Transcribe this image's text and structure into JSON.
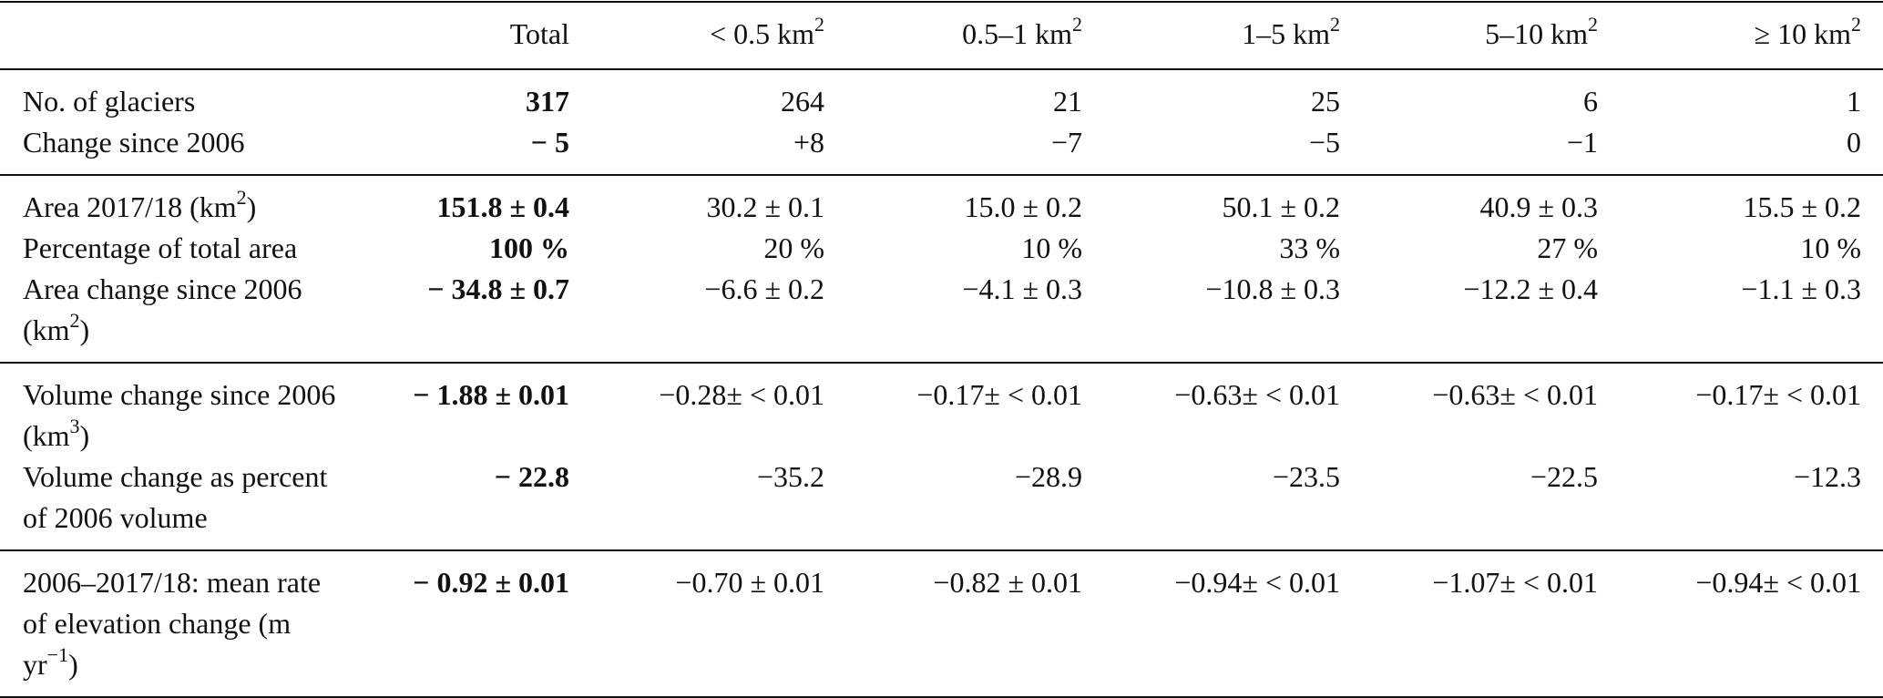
{
  "headers": {
    "total": "Total",
    "bins": [
      {
        "text": "< 0.5 km",
        "sup": "2"
      },
      {
        "text": "0.5–1 km",
        "sup": "2"
      },
      {
        "text": "1–5 km",
        "sup": "2"
      },
      {
        "text": "5–10 km",
        "sup": "2"
      },
      {
        "text": "≥ 10 km",
        "sup": "2"
      }
    ]
  },
  "rows": {
    "num_glaciers": {
      "label": "No. of glaciers",
      "total": "317",
      "values": [
        "264",
        "21",
        "25",
        "6",
        "1"
      ]
    },
    "change_since_2006": {
      "label": "Change since 2006",
      "total": "− 5",
      "values": [
        "+8",
        "−7",
        "−5",
        "−1",
        "0"
      ]
    },
    "area_2017": {
      "label_pre": "Area 2017/18 (km",
      "label_sup": "2",
      "label_post": ")",
      "total": "151.8 ± 0.4",
      "values": [
        "30.2 ± 0.1",
        "15.0 ± 0.2",
        "50.1 ± 0.2",
        "40.9 ± 0.3",
        "15.5 ± 0.2"
      ]
    },
    "pct_total_area": {
      "label": "Percentage of total area",
      "total": "100 %",
      "values": [
        "20 %",
        "10 %",
        "33 %",
        "27 %",
        "10 %"
      ]
    },
    "area_change": {
      "label_pre": "Area change since 2006 (km",
      "label_sup": "2",
      "label_post": ")",
      "total": "− 34.8 ± 0.7",
      "values": [
        "−6.6 ± 0.2",
        "−4.1 ± 0.3",
        "−10.8 ± 0.3",
        "−12.2 ± 0.4",
        "−1.1 ± 0.3"
      ]
    },
    "volume_change": {
      "label_pre": "Volume change since 2006 (km",
      "label_sup": "3",
      "label_post": ")",
      "total": "− 1.88 ± 0.01",
      "values": [
        "−0.28± < 0.01",
        "−0.17± < 0.01",
        "−0.63± < 0.01",
        "−0.63± < 0.01",
        "−0.17± < 0.01"
      ]
    },
    "volume_change_pct": {
      "label": "Volume change as percent of 2006 volume",
      "total": "− 22.8",
      "values": [
        "−35.2",
        "−28.9",
        "−23.5",
        "−22.5",
        "−12.3"
      ]
    },
    "elevation_rate": {
      "label_pre": "2006–2017/18: mean rate of elevation change (m yr",
      "label_sup": "−1",
      "label_post": ")",
      "total": "− 0.92 ± 0.01",
      "values": [
        "−0.70 ± 0.01",
        "−0.82 ± 0.01",
        "−0.94± < 0.01",
        "−1.07± < 0.01",
        "−0.94± < 0.01"
      ]
    }
  }
}
